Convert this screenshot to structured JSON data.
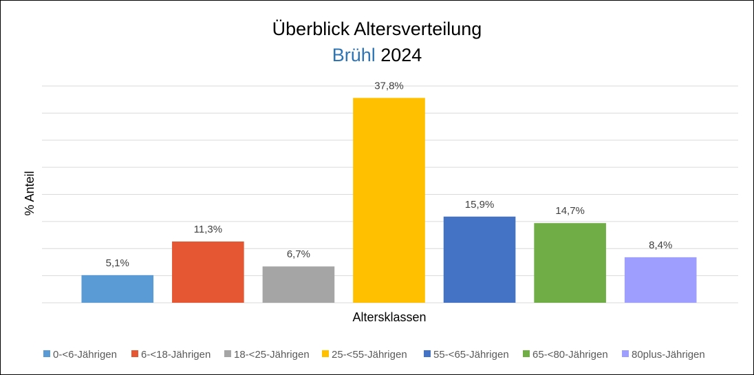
{
  "chart_data": {
    "type": "bar",
    "title_line1": "Überblick Altersverteilung",
    "title_place": "Brühl",
    "title_year": "2024",
    "xlabel": "Altersklassen",
    "ylabel": "% Anteil",
    "ylim": [
      0,
      40
    ],
    "grid": true,
    "legend_position": "bottom",
    "categories": [
      "0-<6-Jährigen",
      "6-<18-Jährigen",
      "18-<25-Jährigen",
      "25-<55-Jährigen",
      "55-<65-Jährigen",
      "65-<80-Jährigen",
      "80plus-Jährigen"
    ],
    "values": [
      5.1,
      11.3,
      6.7,
      37.8,
      15.9,
      14.7,
      8.4
    ],
    "value_labels": [
      "5,1%",
      "11,3%",
      "6,7%",
      "37,8%",
      "15,9%",
      "14,7%",
      "8,4%"
    ],
    "colors": [
      "#5b9bd5",
      "#e55632",
      "#a5a5a5",
      "#ffc000",
      "#4472c4",
      "#70ad47",
      "#9e9eff"
    ],
    "title_accent_color": "#2e75b6"
  }
}
